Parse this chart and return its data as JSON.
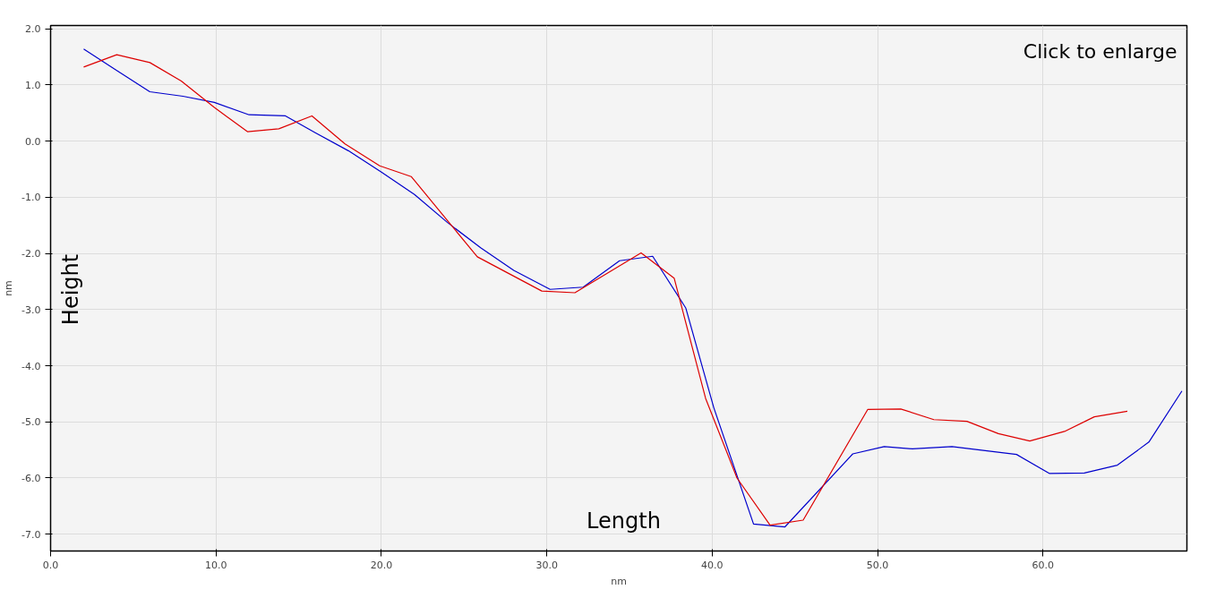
{
  "chart_data": {
    "type": "line",
    "xlabel": "nm",
    "ylabel": "nm",
    "annotations": [
      "Click to enlarge",
      "Height",
      "Length"
    ],
    "xlim": [
      0,
      68.7
    ],
    "ylim": [
      -7.3,
      2.06
    ],
    "xticks": [
      {
        "value": 0,
        "label": "0.0"
      },
      {
        "value": 10,
        "label": "10.0"
      },
      {
        "value": 20,
        "label": "20.0"
      },
      {
        "value": 30,
        "label": "30.0"
      },
      {
        "value": 40,
        "label": "40.0"
      },
      {
        "value": 50,
        "label": "50.0"
      },
      {
        "value": 60,
        "label": "60.0"
      }
    ],
    "yticks": [
      {
        "value": 2,
        "label": "2.0"
      },
      {
        "value": 1,
        "label": "1.0"
      },
      {
        "value": 0,
        "label": "0.0"
      },
      {
        "value": -1,
        "label": "-1.0"
      },
      {
        "value": -2,
        "label": "-2.0"
      },
      {
        "value": -3,
        "label": "-3.0"
      },
      {
        "value": -4,
        "label": "-4.0"
      },
      {
        "value": -5,
        "label": "-5.0"
      },
      {
        "value": -6,
        "label": "-6.0"
      },
      {
        "value": -7,
        "label": "-7.0"
      }
    ],
    "grid": true,
    "marker": "none",
    "line_style": "solid",
    "series": [
      {
        "color": "#0000cc",
        "x": [
          2.0,
          4.0,
          6.0,
          8.0,
          9.9,
          12.0,
          14.2,
          16.0,
          18.0,
          20.0,
          22.0,
          24.0,
          26.0,
          28.0,
          30.2,
          32.2,
          34.4,
          36.4,
          38.4,
          40.1,
          42.5,
          44.4,
          48.5,
          50.4,
          52.1,
          54.5,
          58.4,
          60.4,
          62.5,
          64.5,
          66.4,
          68.4
        ],
        "values": [
          1.64,
          1.26,
          0.88,
          0.8,
          0.69,
          0.47,
          0.45,
          0.15,
          -0.17,
          -0.55,
          -0.95,
          -1.45,
          -1.9,
          -2.3,
          -2.64,
          -2.6,
          -2.13,
          -2.05,
          -2.97,
          -4.75,
          -6.82,
          -6.87,
          -5.57,
          -5.44,
          -5.48,
          -5.44,
          -5.58,
          -5.92,
          -5.91,
          -5.77,
          -5.36,
          -4.45
        ]
      },
      {
        "color": "#dd0000",
        "x": [
          2.0,
          4.0,
          6.0,
          7.9,
          9.9,
          11.9,
          13.8,
          15.8,
          17.8,
          19.9,
          21.8,
          25.8,
          29.7,
          31.7,
          35.7,
          37.7,
          39.6,
          41.5,
          43.5,
          45.5,
          49.4,
          51.4,
          53.4,
          55.4,
          57.3,
          59.2,
          61.3,
          63.1,
          65.1
        ],
        "values": [
          1.32,
          1.54,
          1.4,
          1.07,
          0.6,
          0.17,
          0.22,
          0.45,
          -0.05,
          -0.44,
          -0.63,
          -2.06,
          -2.67,
          -2.7,
          -1.99,
          -2.44,
          -4.58,
          -6.0,
          -6.84,
          -6.75,
          -4.78,
          -4.77,
          -4.96,
          -4.99,
          -5.21,
          -5.34,
          -5.17,
          -4.91,
          -4.81
        ]
      }
    ]
  }
}
